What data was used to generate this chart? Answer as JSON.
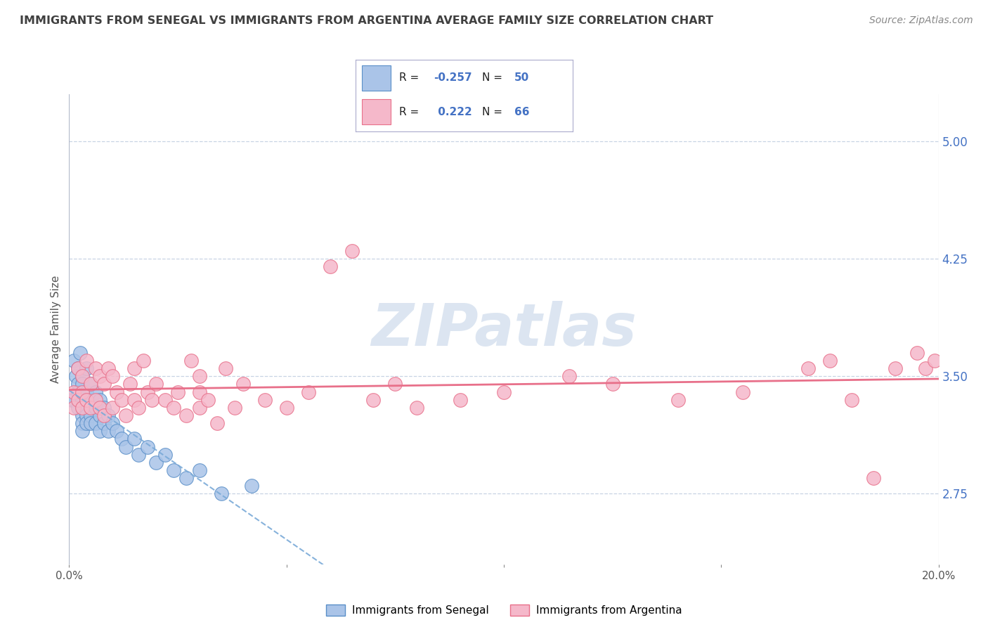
{
  "title": "IMMIGRANTS FROM SENEGAL VS IMMIGRANTS FROM ARGENTINA AVERAGE FAMILY SIZE CORRELATION CHART",
  "source": "Source: ZipAtlas.com",
  "ylabel": "Average Family Size",
  "xlim": [
    0.0,
    0.2
  ],
  "ylim": [
    2.3,
    5.3
  ],
  "yticks": [
    2.75,
    3.5,
    4.25,
    5.0
  ],
  "xticks": [
    0.0,
    0.05,
    0.1,
    0.15,
    0.2
  ],
  "xticklabels": [
    "0.0%",
    "",
    "",
    "",
    "20.0%"
  ],
  "yticklabels_right": [
    "2.75",
    "3.50",
    "4.25",
    "5.00"
  ],
  "series1_color": "#aac4e8",
  "series2_color": "#f5b8ca",
  "series1_edge_color": "#5a8fc8",
  "series2_edge_color": "#e8708a",
  "series1_line_color": "#7aaad8",
  "series2_line_color": "#e8708a",
  "series1_name": "Immigrants from Senegal",
  "series2_name": "Immigrants from Argentina",
  "legend_R1": "-0.257",
  "legend_N1": "50",
  "legend_R2": "0.222",
  "legend_N2": "66",
  "watermark": "ZIPatlas",
  "watermark_color": "#c5d5e8",
  "title_color": "#404040",
  "axis_color": "#4472c4",
  "background_color": "#ffffff",
  "grid_color": "#c8d4e4",
  "series1_x": [
    0.0005,
    0.001,
    0.001,
    0.0015,
    0.002,
    0.002,
    0.002,
    0.002,
    0.0025,
    0.003,
    0.003,
    0.003,
    0.003,
    0.003,
    0.003,
    0.003,
    0.004,
    0.004,
    0.004,
    0.004,
    0.004,
    0.005,
    0.005,
    0.005,
    0.005,
    0.005,
    0.006,
    0.006,
    0.006,
    0.007,
    0.007,
    0.007,
    0.008,
    0.008,
    0.009,
    0.009,
    0.01,
    0.011,
    0.012,
    0.013,
    0.015,
    0.016,
    0.018,
    0.02,
    0.022,
    0.024,
    0.027,
    0.03,
    0.035,
    0.042
  ],
  "series1_y": [
    3.35,
    3.6,
    3.35,
    3.5,
    3.45,
    3.3,
    3.55,
    3.4,
    3.65,
    3.5,
    3.45,
    3.35,
    3.3,
    3.25,
    3.2,
    3.15,
    3.55,
    3.4,
    3.3,
    3.25,
    3.2,
    3.45,
    3.35,
    3.3,
    3.25,
    3.2,
    3.4,
    3.3,
    3.2,
    3.35,
    3.25,
    3.15,
    3.3,
    3.2,
    3.25,
    3.15,
    3.2,
    3.15,
    3.1,
    3.05,
    3.1,
    3.0,
    3.05,
    2.95,
    3.0,
    2.9,
    2.85,
    2.9,
    2.75,
    2.8
  ],
  "series2_x": [
    0.001,
    0.001,
    0.002,
    0.002,
    0.003,
    0.003,
    0.003,
    0.004,
    0.004,
    0.005,
    0.005,
    0.006,
    0.006,
    0.007,
    0.007,
    0.008,
    0.008,
    0.009,
    0.01,
    0.01,
    0.011,
    0.012,
    0.013,
    0.014,
    0.015,
    0.015,
    0.016,
    0.017,
    0.018,
    0.019,
    0.02,
    0.022,
    0.024,
    0.025,
    0.027,
    0.028,
    0.03,
    0.03,
    0.03,
    0.032,
    0.034,
    0.036,
    0.038,
    0.04,
    0.045,
    0.05,
    0.055,
    0.06,
    0.065,
    0.07,
    0.075,
    0.08,
    0.09,
    0.1,
    0.115,
    0.125,
    0.14,
    0.155,
    0.17,
    0.175,
    0.18,
    0.185,
    0.19,
    0.195,
    0.197,
    0.199
  ],
  "series2_y": [
    3.4,
    3.3,
    3.55,
    3.35,
    3.5,
    3.4,
    3.3,
    3.6,
    3.35,
    3.45,
    3.3,
    3.55,
    3.35,
    3.5,
    3.3,
    3.45,
    3.25,
    3.55,
    3.5,
    3.3,
    3.4,
    3.35,
    3.25,
    3.45,
    3.35,
    3.55,
    3.3,
    3.6,
    3.4,
    3.35,
    3.45,
    3.35,
    3.3,
    3.4,
    3.25,
    3.6,
    3.3,
    3.5,
    3.4,
    3.35,
    3.2,
    3.55,
    3.3,
    3.45,
    3.35,
    3.3,
    3.4,
    4.2,
    4.3,
    3.35,
    3.45,
    3.3,
    3.35,
    3.4,
    3.5,
    3.45,
    3.35,
    3.4,
    3.55,
    3.6,
    3.35,
    2.85,
    3.55,
    3.65,
    3.55,
    3.6
  ]
}
